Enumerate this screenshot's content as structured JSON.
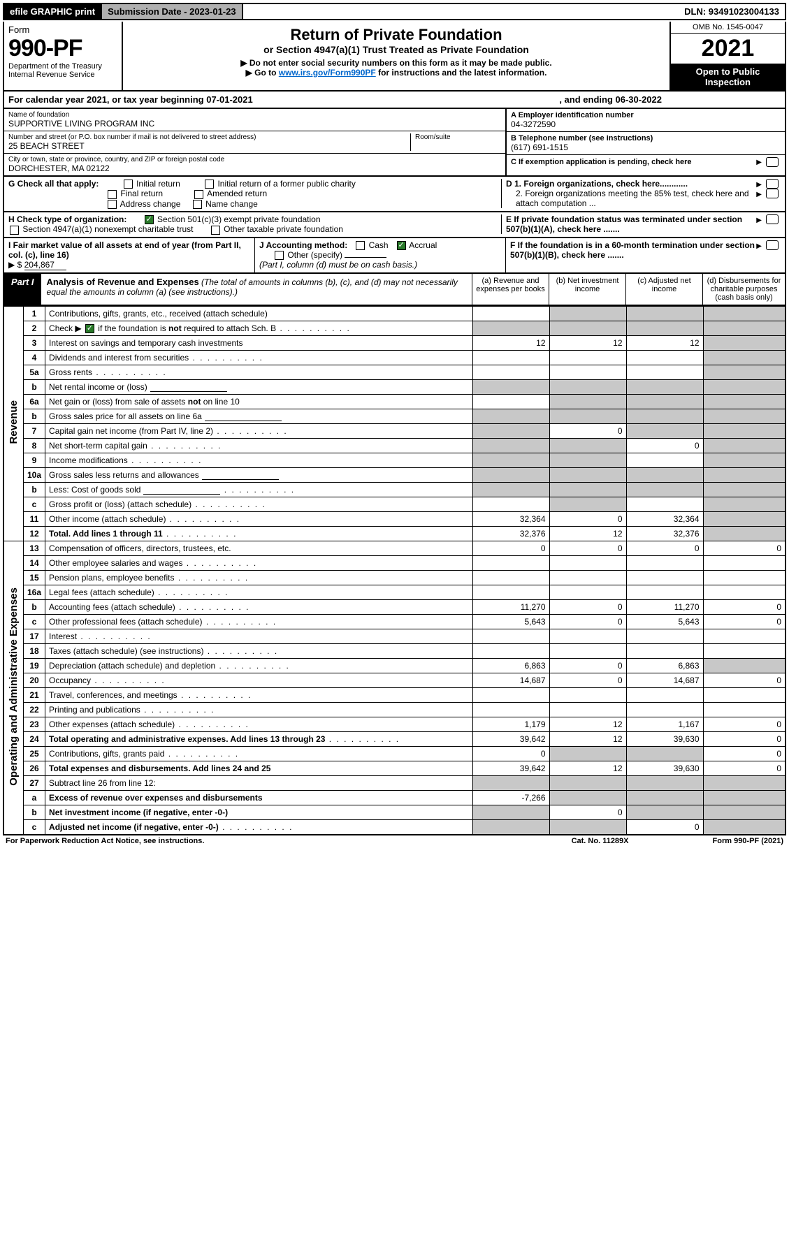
{
  "colors": {
    "black": "#000000",
    "white": "#ffffff",
    "gray_bg": "#b0b0b0",
    "shade": "#c8c8c8",
    "link": "#0066cc",
    "check_green": "#2a7a2a"
  },
  "top": {
    "efile": "efile GRAPHIC print",
    "submission_label": "Submission Date - 2023-01-23",
    "dln_label": "DLN: 93491023004133"
  },
  "header": {
    "form_word": "Form",
    "form_num": "990-PF",
    "dept1": "Department of the Treasury",
    "dept2": "Internal Revenue Service",
    "title": "Return of Private Foundation",
    "subtitle": "or Section 4947(a)(1) Trust Treated as Private Foundation",
    "note1": "▶ Do not enter social security numbers on this form as it may be made public.",
    "note2_pre": "▶ Go to ",
    "note2_link": "www.irs.gov/Form990PF",
    "note2_post": " for instructions and the latest information.",
    "omb": "OMB No. 1545-0047",
    "year": "2021",
    "open": "Open to Public Inspection"
  },
  "calendar": {
    "text1": "For calendar year 2021, or tax year beginning 07-01-2021",
    "text2": ", and ending 06-30-2022"
  },
  "identity": {
    "name_lbl": "Name of foundation",
    "name_val": "SUPPORTIVE LIVING PROGRAM INC",
    "addr_lbl": "Number and street (or P.O. box number if mail is not delivered to street address)",
    "addr_val": "25 BEACH STREET",
    "room_lbl": "Room/suite",
    "city_lbl": "City or town, state or province, country, and ZIP or foreign postal code",
    "city_val": "DORCHESTER, MA  02122",
    "a_lbl": "A Employer identification number",
    "a_val": "04-3272590",
    "b_lbl": "B Telephone number (see instructions)",
    "b_val": "(617) 691-1515",
    "c_lbl": "C If exemption application is pending, check here"
  },
  "g_section": {
    "g_lbl": "G Check all that apply:",
    "g1": "Initial return",
    "g2": "Initial return of a former public charity",
    "g3": "Final return",
    "g4": "Amended return",
    "g5": "Address change",
    "g6": "Name change",
    "d1": "D 1. Foreign organizations, check here............",
    "d2": "2. Foreign organizations meeting the 85% test, check here and attach computation ...",
    "e": "E  If private foundation status was terminated under section 507(b)(1)(A), check here ......."
  },
  "h_section": {
    "h_lbl": "H Check type of organization:",
    "h1": "Section 501(c)(3) exempt private foundation",
    "h2": "Section 4947(a)(1) nonexempt charitable trust",
    "h3": "Other taxable private foundation"
  },
  "ij_section": {
    "i_lbl": "I Fair market value of all assets at end of year (from Part II, col. (c), line 16)",
    "i_arrow": "▶ $",
    "i_val": "204,867",
    "j_lbl": "J Accounting method:",
    "j_cash": "Cash",
    "j_accrual": "Accrual",
    "j_other": "Other (specify)",
    "j_note": "(Part I, column (d) must be on cash basis.)",
    "f_lbl": "F  If the foundation is in a 60-month termination under section 507(b)(1)(B), check here ......."
  },
  "part1": {
    "tab": "Part I",
    "title_b": "Analysis of Revenue and Expenses",
    "title_rest": " (The total of amounts in columns (b), (c), and (d) may not necessarily equal the amounts in column (a) (see instructions).)",
    "col_a": "(a)   Revenue and expenses per books",
    "col_b": "(b)   Net investment income",
    "col_c": "(c)   Adjusted net income",
    "col_d": "(d)  Disbursements for charitable purposes (cash basis only)"
  },
  "sections": {
    "revenue": "Revenue",
    "opex": "Operating and Administrative Expenses"
  },
  "rows": [
    {
      "n": "1",
      "desc": "Contributions, gifts, grants, etc., received (attach schedule)",
      "a": "",
      "b": "shade",
      "c": "shade",
      "d": "shade"
    },
    {
      "n": "2",
      "desc": "Check ▶ ☑ if the foundation is not required to attach Sch. B",
      "dots": true,
      "a": "shade",
      "b": "shade",
      "c": "shade",
      "d": "shade"
    },
    {
      "n": "3",
      "desc": "Interest on savings and temporary cash investments",
      "a": "12",
      "b": "12",
      "c": "12",
      "d": "shade"
    },
    {
      "n": "4",
      "desc": "Dividends and interest from securities",
      "dots": true,
      "a": "",
      "b": "",
      "c": "",
      "d": "shade"
    },
    {
      "n": "5a",
      "desc": "Gross rents",
      "dots": true,
      "a": "",
      "b": "",
      "c": "",
      "d": "shade"
    },
    {
      "n": "b",
      "desc": "Net rental income or (loss)",
      "mini": true,
      "a": "shade",
      "b": "shade",
      "c": "shade",
      "d": "shade"
    },
    {
      "n": "6a",
      "desc": "Net gain or (loss) from sale of assets not on line 10",
      "a": "",
      "b": "shade",
      "c": "shade",
      "d": "shade"
    },
    {
      "n": "b",
      "desc": "Gross sales price for all assets on line 6a",
      "mini": true,
      "a": "shade",
      "b": "shade",
      "c": "shade",
      "d": "shade"
    },
    {
      "n": "7",
      "desc": "Capital gain net income (from Part IV, line 2)",
      "dots": true,
      "a": "shade",
      "b": "0",
      "c": "shade",
      "d": "shade"
    },
    {
      "n": "8",
      "desc": "Net short-term capital gain",
      "dots": true,
      "a": "shade",
      "b": "shade",
      "c": "0",
      "d": "shade"
    },
    {
      "n": "9",
      "desc": "Income modifications",
      "dots": true,
      "a": "shade",
      "b": "shade",
      "c": "",
      "d": "shade"
    },
    {
      "n": "10a",
      "desc": "Gross sales less returns and allowances",
      "mini": true,
      "a": "shade",
      "b": "shade",
      "c": "shade",
      "d": "shade"
    },
    {
      "n": "b",
      "desc": "Less: Cost of goods sold",
      "dots": true,
      "mini": true,
      "a": "shade",
      "b": "shade",
      "c": "shade",
      "d": "shade"
    },
    {
      "n": "c",
      "desc": "Gross profit or (loss) (attach schedule)",
      "dots": true,
      "a": "",
      "b": "shade",
      "c": "",
      "d": "shade"
    },
    {
      "n": "11",
      "desc": "Other income (attach schedule)",
      "dots": true,
      "a": "32,364",
      "b": "0",
      "c": "32,364",
      "d": "shade"
    },
    {
      "n": "12",
      "desc": "Total. Add lines 1 through 11",
      "dots": true,
      "bold": true,
      "a": "32,376",
      "b": "12",
      "c": "32,376",
      "d": "shade"
    }
  ],
  "rows_opex": [
    {
      "n": "13",
      "desc": "Compensation of officers, directors, trustees, etc.",
      "a": "0",
      "b": "0",
      "c": "0",
      "d": "0"
    },
    {
      "n": "14",
      "desc": "Other employee salaries and wages",
      "dots": true,
      "a": "",
      "b": "",
      "c": "",
      "d": ""
    },
    {
      "n": "15",
      "desc": "Pension plans, employee benefits",
      "dots": true,
      "a": "",
      "b": "",
      "c": "",
      "d": ""
    },
    {
      "n": "16a",
      "desc": "Legal fees (attach schedule)",
      "dots": true,
      "a": "",
      "b": "",
      "c": "",
      "d": ""
    },
    {
      "n": "b",
      "desc": "Accounting fees (attach schedule)",
      "dots": true,
      "a": "11,270",
      "b": "0",
      "c": "11,270",
      "d": "0"
    },
    {
      "n": "c",
      "desc": "Other professional fees (attach schedule)",
      "dots": true,
      "a": "5,643",
      "b": "0",
      "c": "5,643",
      "d": "0"
    },
    {
      "n": "17",
      "desc": "Interest",
      "dots": true,
      "a": "",
      "b": "",
      "c": "",
      "d": ""
    },
    {
      "n": "18",
      "desc": "Taxes (attach schedule) (see instructions)",
      "dots": true,
      "a": "",
      "b": "",
      "c": "",
      "d": ""
    },
    {
      "n": "19",
      "desc": "Depreciation (attach schedule) and depletion",
      "dots": true,
      "a": "6,863",
      "b": "0",
      "c": "6,863",
      "d": "shade"
    },
    {
      "n": "20",
      "desc": "Occupancy",
      "dots": true,
      "a": "14,687",
      "b": "0",
      "c": "14,687",
      "d": "0"
    },
    {
      "n": "21",
      "desc": "Travel, conferences, and meetings",
      "dots": true,
      "a": "",
      "b": "",
      "c": "",
      "d": ""
    },
    {
      "n": "22",
      "desc": "Printing and publications",
      "dots": true,
      "a": "",
      "b": "",
      "c": "",
      "d": ""
    },
    {
      "n": "23",
      "desc": "Other expenses (attach schedule)",
      "dots": true,
      "a": "1,179",
      "b": "12",
      "c": "1,167",
      "d": "0"
    },
    {
      "n": "24",
      "desc": "Total operating and administrative expenses. Add lines 13 through 23",
      "dots": true,
      "bold": true,
      "a": "39,642",
      "b": "12",
      "c": "39,630",
      "d": "0"
    },
    {
      "n": "25",
      "desc": "Contributions, gifts, grants paid",
      "dots": true,
      "a": "0",
      "b": "shade",
      "c": "shade",
      "d": "0"
    },
    {
      "n": "26",
      "desc": "Total expenses and disbursements. Add lines 24 and 25",
      "bold": true,
      "a": "39,642",
      "b": "12",
      "c": "39,630",
      "d": "0"
    },
    {
      "n": "27",
      "desc": "Subtract line 26 from line 12:",
      "a": "shade",
      "b": "shade",
      "c": "shade",
      "d": "shade"
    },
    {
      "n": "a",
      "desc": "Excess of revenue over expenses and disbursements",
      "bold": true,
      "a": "-7,266",
      "b": "shade",
      "c": "shade",
      "d": "shade"
    },
    {
      "n": "b",
      "desc": "Net investment income (if negative, enter -0-)",
      "bold": true,
      "a": "shade",
      "b": "0",
      "c": "shade",
      "d": "shade"
    },
    {
      "n": "c",
      "desc": "Adjusted net income (if negative, enter -0-)",
      "dots": true,
      "bold": true,
      "a": "shade",
      "b": "shade",
      "c": "0",
      "d": "shade"
    }
  ],
  "footer": {
    "left": "For Paperwork Reduction Act Notice, see instructions.",
    "mid": "Cat. No. 11289X",
    "right": "Form 990-PF (2021)"
  }
}
